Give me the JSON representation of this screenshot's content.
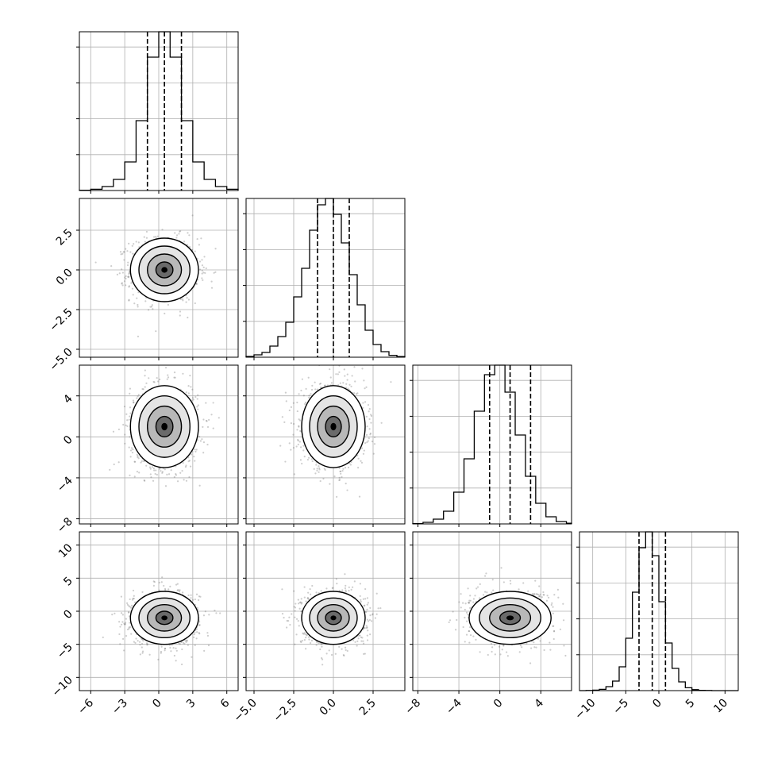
{
  "chart_data": {
    "type": "corner",
    "title": "",
    "n_params": 4,
    "grid": true,
    "params": [
      {
        "range": [
          -7,
          7
        ],
        "ticks": [
          -6,
          -3,
          0,
          3,
          6
        ],
        "tick_labels": [
          "−6",
          "−3",
          "0",
          "3",
          "6"
        ],
        "mean": 0.5,
        "std": 1.5,
        "quantiles": [
          -1.0,
          0.5,
          2.0
        ],
        "hist_bins": [
          -7,
          -6,
          -5,
          -4,
          -3,
          -2,
          -1,
          0,
          1,
          2,
          3,
          4,
          5,
          6,
          7
        ],
        "hist_counts": [
          2,
          8,
          25,
          70,
          180,
          440,
          840,
          1000,
          840,
          440,
          180,
          70,
          25,
          8
        ]
      },
      {
        "range": [
          -5.5,
          4.5
        ],
        "ticks": [
          -5.0,
          -2.5,
          0.0,
          2.5
        ],
        "tick_labels": [
          "−5.0",
          "−2.5",
          "0.0",
          "2.5"
        ],
        "mean": 0.0,
        "std": 1.0,
        "quantiles": [
          -1.0,
          0.0,
          1.0
        ],
        "hist_bins": [
          -5.5,
          -5.0,
          -4.5,
          -4.0,
          -3.5,
          -3.0,
          -2.5,
          -2.0,
          -1.5,
          -1.0,
          -0.5,
          0.0,
          0.5,
          1.0,
          1.5,
          2.0,
          2.5,
          3.0,
          3.5,
          4.0,
          4.5
        ],
        "hist_counts": [
          5,
          15,
          30,
          70,
          130,
          220,
          380,
          560,
          800,
          960,
          1000,
          900,
          720,
          520,
          330,
          170,
          80,
          35,
          12,
          4
        ]
      },
      {
        "range": [
          -8.5,
          7
        ],
        "ticks": [
          -8,
          -4,
          0,
          4
        ],
        "tick_labels": [
          "−8",
          "−4",
          "0",
          "4"
        ],
        "mean": 1.0,
        "std": 2.0,
        "quantiles": [
          -1.0,
          1.0,
          3.0
        ],
        "hist_bins": [
          -8.5,
          -7.5,
          -6.5,
          -5.5,
          -4.5,
          -3.5,
          -2.5,
          -1.5,
          -0.5,
          0.5,
          1.5,
          2.5,
          3.5,
          4.5,
          5.5,
          6.5,
          7.0
        ],
        "hist_counts": [
          2,
          10,
          30,
          80,
          200,
          410,
          710,
          940,
          1000,
          830,
          560,
          300,
          130,
          45,
          15,
          4
        ]
      },
      {
        "range": [
          -12,
          12
        ],
        "ticks": [
          -10,
          -5,
          0,
          5,
          10
        ],
        "tick_labels": [
          "−10",
          "−5",
          "0",
          "5",
          "10"
        ],
        "mean": -1.0,
        "std": 2.0,
        "quantiles": [
          -3.0,
          -1.0,
          1.0
        ],
        "hist_bins": [
          -12,
          -11,
          -10,
          -9,
          -8,
          -7,
          -6,
          -5,
          -4,
          -3,
          -2,
          -1,
          0,
          1,
          2,
          3,
          4,
          5,
          6,
          7,
          8,
          9,
          10,
          11,
          12
        ],
        "hist_counts": [
          0,
          1,
          3,
          8,
          25,
          60,
          150,
          330,
          620,
          900,
          1000,
          850,
          560,
          300,
          140,
          55,
          18,
          6,
          2,
          1,
          0,
          0,
          0,
          0
        ]
      }
    ]
  }
}
